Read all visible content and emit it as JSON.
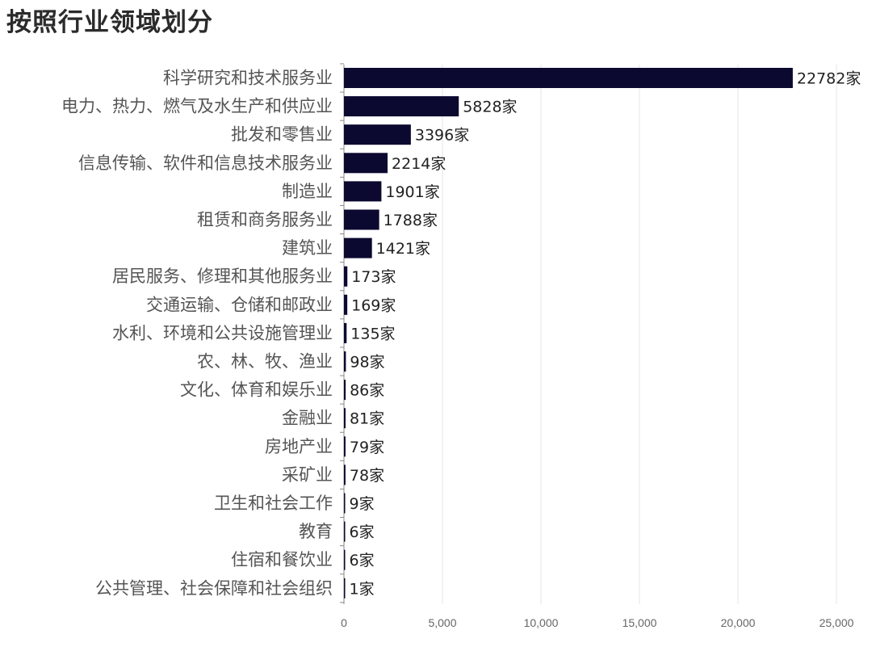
{
  "page": {
    "title": "按照行业领域划分"
  },
  "chart_data": {
    "type": "bar",
    "orientation": "horizontal",
    "title": "按照行业领域划分",
    "xlabel": "",
    "ylabel": "",
    "value_suffix": "家",
    "xlim": [
      0,
      25000
    ],
    "xticks": [
      0,
      5000,
      10000,
      15000,
      20000,
      25000
    ],
    "xtick_labels": [
      "0",
      "5,000",
      "10,000",
      "15,000",
      "20,000",
      "25,000"
    ],
    "grid": "vertical",
    "bar_color": "#0b0930",
    "categories": [
      "科学研究和技术服务业",
      "电力、热力、燃气及水生产和供应业",
      "批发和零售业",
      "信息传输、软件和信息技术服务业",
      "制造业",
      "租赁和商务服务业",
      "建筑业",
      "居民服务、修理和其他服务业",
      "交通运输、仓储和邮政业",
      "水利、环境和公共设施管理业",
      "农、林、牧、渔业",
      "文化、体育和娱乐业",
      "金融业",
      "房地产业",
      "采矿业",
      "卫生和社会工作",
      "教育",
      "住宿和餐饮业",
      "公共管理、社会保障和社会组织"
    ],
    "values": [
      22782,
      5828,
      3396,
      2214,
      1901,
      1788,
      1421,
      173,
      169,
      135,
      98,
      86,
      81,
      79,
      78,
      9,
      6,
      6,
      1
    ]
  }
}
